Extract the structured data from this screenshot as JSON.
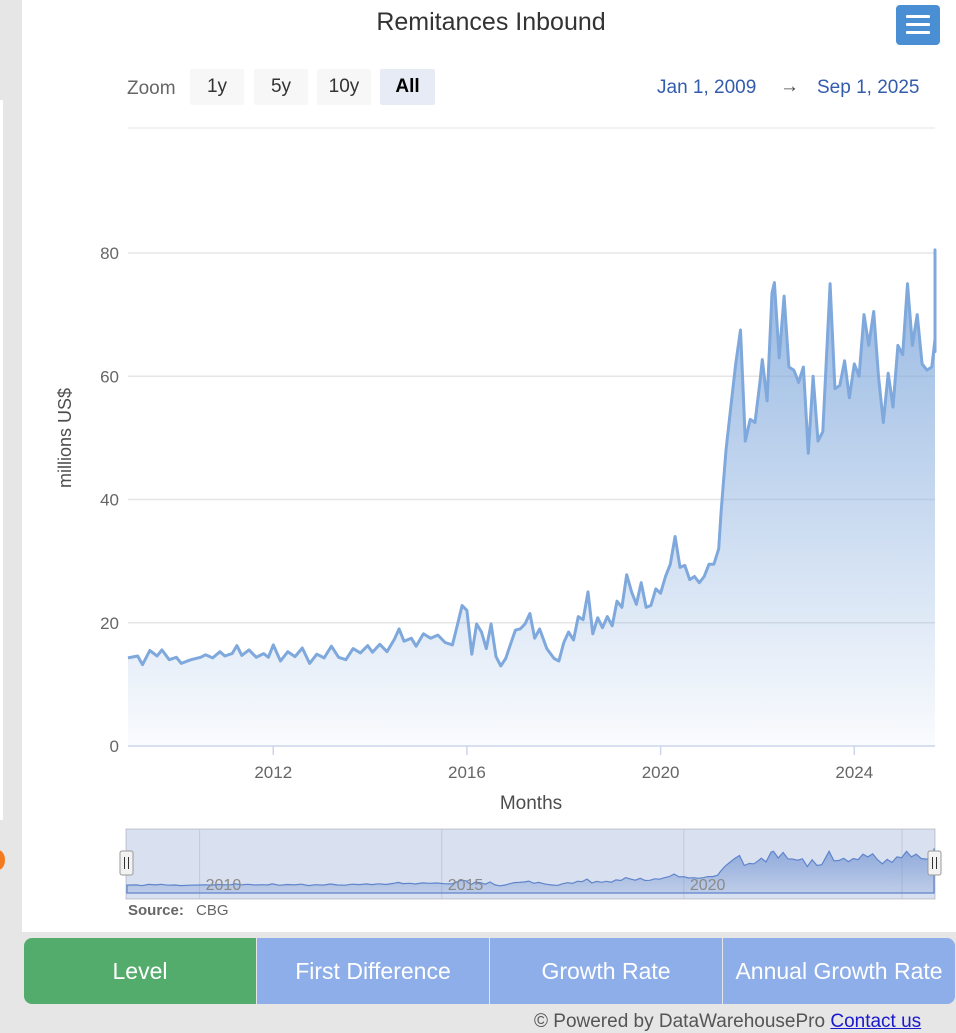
{
  "chart_data": {
    "type": "area",
    "title": "Remitances Inbound",
    "xlabel": "Months",
    "ylabel": "millions US$",
    "ylim": [
      0,
      80
    ],
    "xlim": [
      2009.0,
      2025.667
    ],
    "yticks": [
      "0",
      "20",
      "40",
      "60",
      "80"
    ],
    "xticks": [
      {
        "value": 2012,
        "label": "2012"
      },
      {
        "value": 2016,
        "label": "2016"
      },
      {
        "value": 2020,
        "label": "2020"
      },
      {
        "value": 2024,
        "label": "2024"
      }
    ],
    "grid": true,
    "legend": "none",
    "line_color": "#7fa8dc",
    "series": [
      {
        "points": [
          [
            2009.0,
            14.3
          ],
          [
            2009.2,
            14.6
          ],
          [
            2009.3,
            13.2
          ],
          [
            2009.45,
            15.5
          ],
          [
            2009.6,
            14.6
          ],
          [
            2009.7,
            15.6
          ],
          [
            2009.85,
            14.0
          ],
          [
            2010.0,
            14.4
          ],
          [
            2010.1,
            13.4
          ],
          [
            2010.3,
            14.0
          ],
          [
            2010.5,
            14.4
          ],
          [
            2010.6,
            14.8
          ],
          [
            2010.75,
            14.3
          ],
          [
            2010.9,
            15.3
          ],
          [
            2011.0,
            14.6
          ],
          [
            2011.15,
            15.0
          ],
          [
            2011.25,
            16.3
          ],
          [
            2011.35,
            14.7
          ],
          [
            2011.5,
            15.6
          ],
          [
            2011.65,
            14.4
          ],
          [
            2011.8,
            15.0
          ],
          [
            2011.9,
            14.4
          ],
          [
            2012.0,
            16.4
          ],
          [
            2012.15,
            13.8
          ],
          [
            2012.3,
            15.3
          ],
          [
            2012.45,
            14.5
          ],
          [
            2012.6,
            15.9
          ],
          [
            2012.75,
            13.4
          ],
          [
            2012.9,
            14.9
          ],
          [
            2013.05,
            14.3
          ],
          [
            2013.2,
            16.2
          ],
          [
            2013.35,
            14.4
          ],
          [
            2013.5,
            14.0
          ],
          [
            2013.65,
            15.8
          ],
          [
            2013.8,
            15.1
          ],
          [
            2013.95,
            16.3
          ],
          [
            2014.05,
            15.2
          ],
          [
            2014.2,
            16.5
          ],
          [
            2014.35,
            15.3
          ],
          [
            2014.5,
            17.3
          ],
          [
            2014.6,
            19.0
          ],
          [
            2014.7,
            17.0
          ],
          [
            2014.85,
            17.5
          ],
          [
            2014.95,
            16.2
          ],
          [
            2015.1,
            18.2
          ],
          [
            2015.25,
            17.5
          ],
          [
            2015.4,
            18.0
          ],
          [
            2015.55,
            16.8
          ],
          [
            2015.7,
            16.4
          ],
          [
            2015.8,
            19.5
          ],
          [
            2015.9,
            22.8
          ],
          [
            2016.0,
            22.0
          ],
          [
            2016.1,
            14.9
          ],
          [
            2016.2,
            19.8
          ],
          [
            2016.3,
            18.5
          ],
          [
            2016.4,
            15.8
          ],
          [
            2016.5,
            19.8
          ],
          [
            2016.6,
            14.5
          ],
          [
            2016.7,
            13.0
          ],
          [
            2016.8,
            14.2
          ],
          [
            2016.9,
            16.5
          ],
          [
            2017.0,
            18.8
          ],
          [
            2017.1,
            19.0
          ],
          [
            2017.2,
            19.8
          ],
          [
            2017.3,
            21.5
          ],
          [
            2017.4,
            17.5
          ],
          [
            2017.5,
            19.0
          ],
          [
            2017.65,
            15.8
          ],
          [
            2017.8,
            14.2
          ],
          [
            2017.9,
            13.8
          ],
          [
            2018.0,
            16.8
          ],
          [
            2018.1,
            18.5
          ],
          [
            2018.2,
            17.2
          ],
          [
            2018.3,
            21.0
          ],
          [
            2018.4,
            20.5
          ],
          [
            2018.5,
            25.0
          ],
          [
            2018.6,
            18.2
          ],
          [
            2018.7,
            20.8
          ],
          [
            2018.8,
            19.2
          ],
          [
            2018.9,
            21.0
          ],
          [
            2019.0,
            19.5
          ],
          [
            2019.1,
            23.5
          ],
          [
            2019.2,
            22.5
          ],
          [
            2019.3,
            27.8
          ],
          [
            2019.4,
            25.0
          ],
          [
            2019.5,
            23.0
          ],
          [
            2019.6,
            26.5
          ],
          [
            2019.7,
            22.5
          ],
          [
            2019.8,
            22.8
          ],
          [
            2019.9,
            25.5
          ],
          [
            2020.0,
            24.8
          ],
          [
            2020.1,
            27.5
          ],
          [
            2020.2,
            29.5
          ],
          [
            2020.3,
            34.0
          ],
          [
            2020.4,
            29.0
          ],
          [
            2020.5,
            29.3
          ],
          [
            2020.6,
            27.0
          ],
          [
            2020.7,
            27.5
          ],
          [
            2020.8,
            26.5
          ],
          [
            2020.9,
            27.5
          ],
          [
            2021.0,
            29.5
          ],
          [
            2021.1,
            29.5
          ],
          [
            2021.2,
            32.0
          ],
          [
            2021.25,
            38.0
          ],
          [
            2021.35,
            48.0
          ],
          [
            2021.45,
            55.0
          ],
          [
            2021.55,
            62.0
          ],
          [
            2021.65,
            67.5
          ],
          [
            2021.75,
            49.5
          ],
          [
            2021.85,
            53.0
          ],
          [
            2021.95,
            52.5
          ],
          [
            2022.05,
            59.0
          ],
          [
            2022.1,
            62.7
          ],
          [
            2022.2,
            56.0
          ],
          [
            2022.3,
            73.5
          ],
          [
            2022.35,
            75.2
          ],
          [
            2022.45,
            63.0
          ],
          [
            2022.55,
            73.0
          ],
          [
            2022.65,
            61.5
          ],
          [
            2022.75,
            61.0
          ],
          [
            2022.85,
            59.0
          ],
          [
            2022.95,
            61.5
          ],
          [
            2023.05,
            47.5
          ],
          [
            2023.15,
            60.0
          ],
          [
            2023.25,
            49.5
          ],
          [
            2023.35,
            51.0
          ],
          [
            2023.5,
            75.0
          ],
          [
            2023.6,
            58.0
          ],
          [
            2023.7,
            58.5
          ],
          [
            2023.8,
            62.5
          ],
          [
            2023.9,
            56.5
          ],
          [
            2024.0,
            62.0
          ],
          [
            2024.1,
            60.0
          ],
          [
            2024.2,
            70.0
          ],
          [
            2024.3,
            65.0
          ],
          [
            2024.4,
            70.5
          ],
          [
            2024.5,
            60.0
          ],
          [
            2024.6,
            52.5
          ],
          [
            2024.7,
            60.5
          ],
          [
            2024.8,
            55.0
          ],
          [
            2024.9,
            65.0
          ],
          [
            2025.0,
            63.5
          ],
          [
            2025.1,
            75.0
          ],
          [
            2025.2,
            65.0
          ],
          [
            2025.3,
            70.0
          ],
          [
            2025.4,
            62.0
          ],
          [
            2025.5,
            61.0
          ],
          [
            2025.6,
            61.5
          ],
          [
            2025.7,
            66.0
          ],
          [
            2025.8,
            64.0
          ],
          [
            2025.9,
            78.0
          ],
          [
            2026.0,
            66.5
          ],
          [
            2026.1,
            80.5
          ],
          [
            2026.2,
            68.0
          ],
          [
            2026.3,
            72.0
          ],
          [
            2026.4,
            68.0
          ],
          [
            2026.45,
            71.5
          ]
        ]
      }
    ]
  },
  "header": {
    "zoom_label": "Zoom",
    "zoom_buttons": [
      "1y",
      "5y",
      "10y",
      "All"
    ],
    "active_zoom": "All",
    "range_from": "Jan 1, 2009",
    "range_arrow": "→",
    "range_to": "Sep 1, 2025"
  },
  "navigator": {
    "labels": [
      "2010",
      "2015",
      "2020"
    ],
    "handle_glyph": "||"
  },
  "source": {
    "prefix": "Source:",
    "value": "CBG"
  },
  "tabs": [
    {
      "label": "Level",
      "color": "#53ac6b"
    },
    {
      "label": "First Difference",
      "color": "#8eaee9"
    },
    {
      "label": "Growth Rate",
      "color": "#8eaee9"
    },
    {
      "label": "Annual Growth Rate",
      "color": "#8eaee9"
    }
  ],
  "footer": {
    "powered_text": "© Powered by DataWarehousePro",
    "contact_text": "Contact us"
  }
}
